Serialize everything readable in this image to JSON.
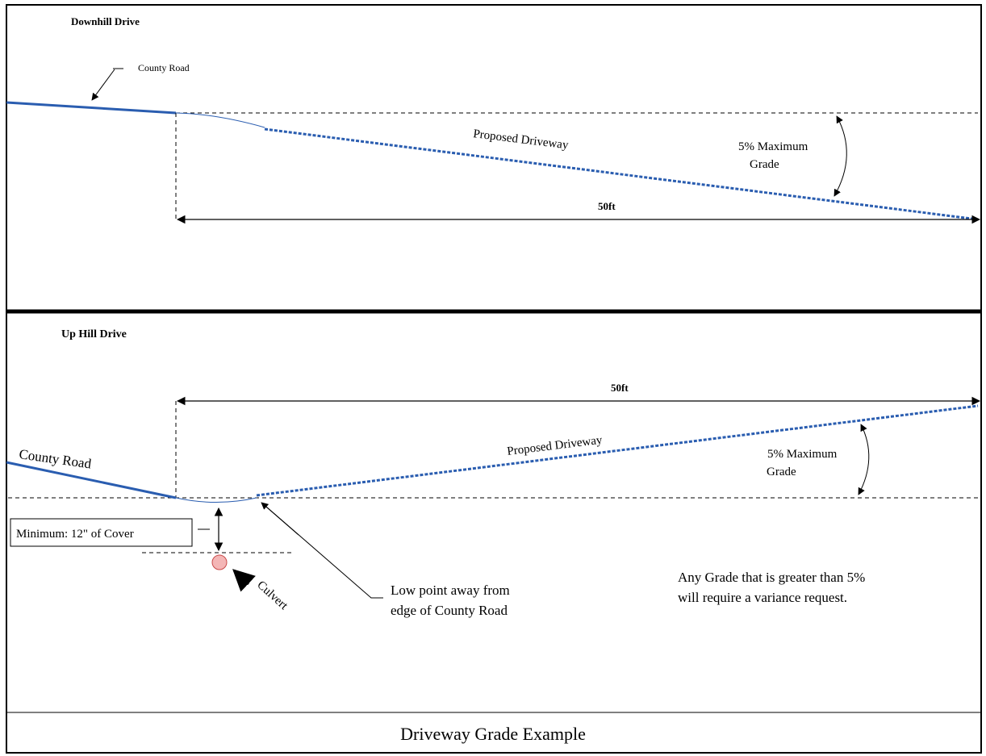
{
  "top_panel": {
    "title": "Downhill Drive",
    "county_road_label": "County Road",
    "driveway_label": "Proposed Driveway",
    "grade_label_line1": "5% Maximum",
    "grade_label_line2": "Grade",
    "distance_label": "50ft"
  },
  "bottom_panel": {
    "title": "Up Hill Drive",
    "county_road_label": "County Road",
    "driveway_label": "Proposed Driveway",
    "grade_label_line1": "5% Maximum",
    "grade_label_line2": "Grade",
    "distance_label": "50ft",
    "cover_label": "Minimum: 12\" of Cover",
    "culvert_label": "Culvert",
    "low_point_line1": "Low point away from",
    "low_point_line2": "edge of County Road",
    "variance_line1": "Any Grade that is greater than 5%",
    "variance_line2": "will require a variance request."
  },
  "footer": {
    "caption": "Driveway Grade Example"
  },
  "colors": {
    "road_blue": "#2a5db0",
    "culvert_fill": "#f4b6b6",
    "culvert_stroke": "#c94a4a",
    "line": "#000000"
  }
}
